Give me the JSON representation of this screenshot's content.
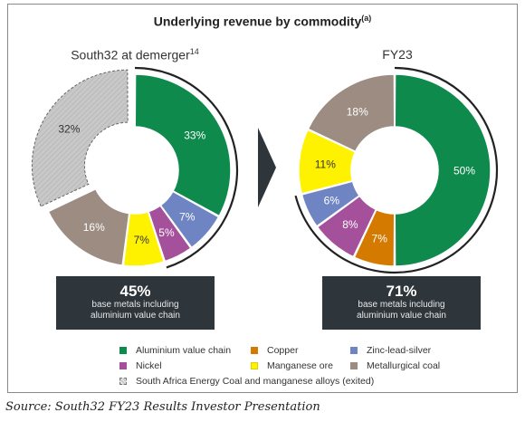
{
  "title_main": "Underlying revenue by commodity",
  "title_sup": "(a)",
  "chart_data": [
    {
      "type": "pie",
      "title": "South32 at demerger",
      "title_sup": "14",
      "slices": [
        {
          "name": "Aluminium value chain",
          "value": 33,
          "label": "33%",
          "color": "#0f8a4d"
        },
        {
          "name": "Zinc-lead-silver",
          "value": 7,
          "label": "7%",
          "color": "#6f84c2"
        },
        {
          "name": "Nickel",
          "value": 5,
          "label": "5%",
          "color": "#a5509b"
        },
        {
          "name": "Manganese ore",
          "value": 7,
          "label": "7%",
          "color": "#fff200"
        },
        {
          "name": "Metallurgical coal",
          "value": 16,
          "label": "16%",
          "color": "#9c8c82"
        },
        {
          "name": "South Africa Energy Coal and manganese alloys (exited)",
          "value": 32,
          "label": "32%",
          "color": "#c9c9c9"
        }
      ],
      "callout_value": "45%",
      "callout_text": [
        "base metals including",
        "aluminium value chain"
      ]
    },
    {
      "type": "pie",
      "title": "FY23",
      "slices": [
        {
          "name": "Aluminium value chain",
          "value": 50,
          "label": "50%",
          "color": "#0f8a4d"
        },
        {
          "name": "Copper",
          "value": 7,
          "label": "7%",
          "color": "#d47a00"
        },
        {
          "name": "Nickel",
          "value": 8,
          "label": "8%",
          "color": "#a5509b"
        },
        {
          "name": "Zinc-lead-silver",
          "value": 6,
          "label": "6%",
          "color": "#6f84c2"
        },
        {
          "name": "Manganese ore",
          "value": 11,
          "label": "11%",
          "color": "#fff200"
        },
        {
          "name": "Metallurgical coal",
          "value": 18,
          "label": "18%",
          "color": "#9c8c82"
        }
      ],
      "callout_value": "71%",
      "callout_text": [
        "base metals including",
        "aluminium value chain"
      ]
    }
  ],
  "legend": {
    "rows": [
      [
        {
          "label": "Aluminium value chain",
          "color": "#0f8a4d"
        },
        {
          "label": "Copper",
          "color": "#d47a00"
        },
        {
          "label": "Zinc-lead-silver",
          "color": "#6f84c2"
        }
      ],
      [
        {
          "label": "Nickel",
          "color": "#a5509b"
        },
        {
          "label": "Manganese ore",
          "color": "#fff200"
        },
        {
          "label": "Metallurgical coal",
          "color": "#9c8c82"
        }
      ],
      [
        {
          "label": "South Africa Energy Coal and manganese alloys (exited)",
          "color": "#c9c9c9",
          "hatched": true
        }
      ]
    ]
  },
  "source": "Source: South32 FY23 Results Investor Presentation"
}
